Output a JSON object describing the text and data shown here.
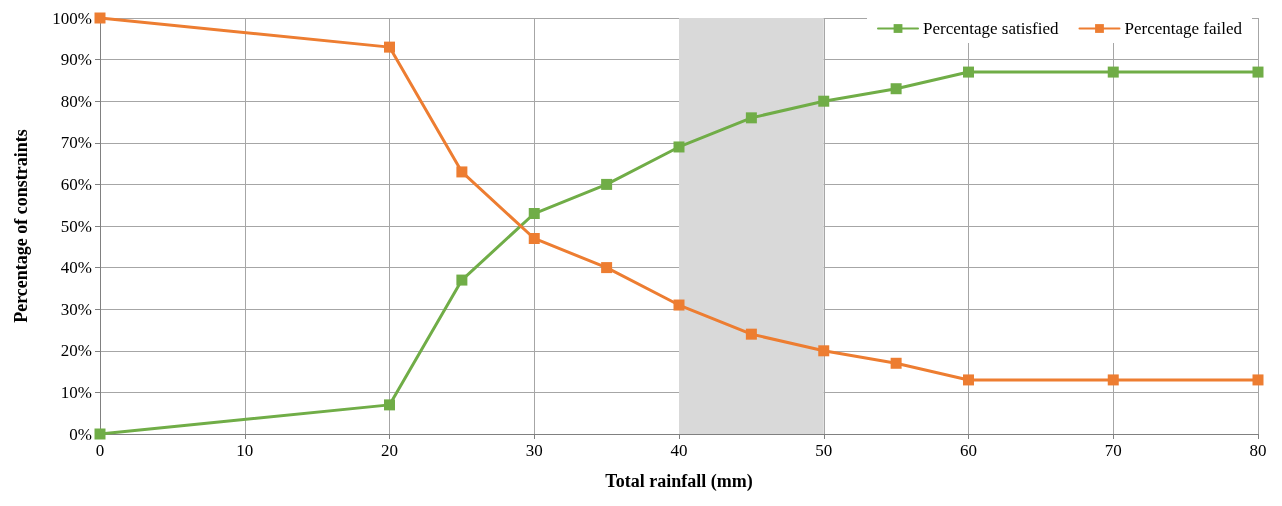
{
  "chart_data": {
    "type": "line",
    "xlabel": "Total rainfall (mm)",
    "ylabel": "Percentage of constraints",
    "x": [
      0,
      20,
      25,
      30,
      35,
      40,
      45,
      50,
      55,
      60,
      70,
      80
    ],
    "series": [
      {
        "name": "Percentage satisfied",
        "color": "#70ad47",
        "values": [
          0,
          7,
          37,
          53,
          60,
          69,
          76,
          80,
          83,
          87,
          87,
          87
        ]
      },
      {
        "name": "Percentage failed",
        "color": "#ed7d31",
        "values": [
          100,
          93,
          63,
          47,
          40,
          31,
          24,
          20,
          17,
          13,
          13,
          13
        ]
      }
    ],
    "xlim": [
      0,
      80
    ],
    "xticks": [
      0,
      10,
      20,
      30,
      40,
      50,
      60,
      70,
      80
    ],
    "ylim": [
      0,
      100
    ],
    "yticks": [
      {
        "value": 0,
        "label": "0%"
      },
      {
        "value": 10,
        "label": "10%"
      },
      {
        "value": 20,
        "label": "20%"
      },
      {
        "value": 30,
        "label": "30%"
      },
      {
        "value": 40,
        "label": "40%"
      },
      {
        "value": 50,
        "label": "50%"
      },
      {
        "value": 60,
        "label": "60%"
      },
      {
        "value": 70,
        "label": "70%"
      },
      {
        "value": 80,
        "label": "80%"
      },
      {
        "value": 90,
        "label": "90%"
      },
      {
        "value": 100,
        "label": "100%"
      }
    ],
    "bands": [
      {
        "axis": "x",
        "from": 40,
        "to": 50,
        "color": "#d9d9d9"
      }
    ],
    "grid": true,
    "legend": "top right",
    "marker": "square",
    "line_style": "solid"
  }
}
